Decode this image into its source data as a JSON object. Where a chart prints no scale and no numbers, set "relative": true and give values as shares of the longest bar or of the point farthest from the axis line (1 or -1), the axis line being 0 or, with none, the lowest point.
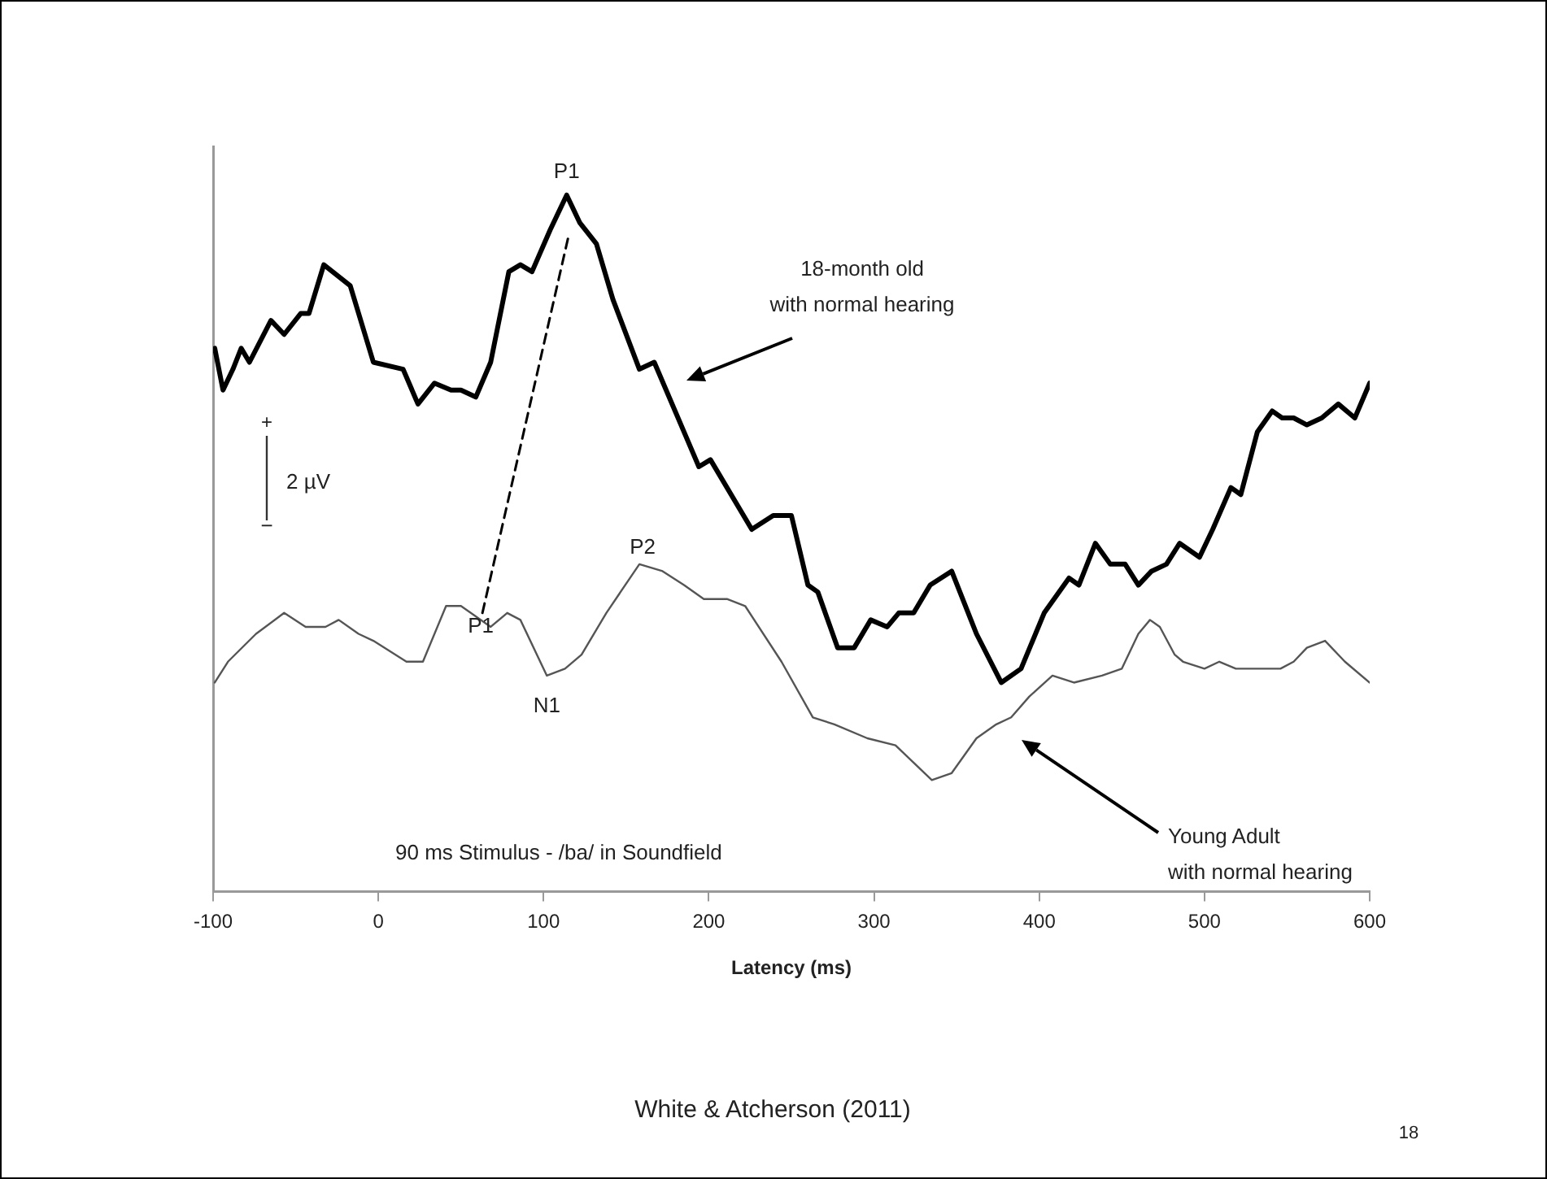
{
  "chart_data": {
    "type": "line",
    "relative": true,
    "xlabel": "Latency (ms)",
    "xlim": [
      -100,
      600
    ],
    "xticks": [
      -100,
      0,
      100,
      200,
      300,
      400,
      500,
      600
    ],
    "grid": false,
    "legend": false,
    "marker": "none",
    "line_style": "solid",
    "series": [
      {
        "color": "#000000",
        "x": [
          -99,
          -94,
          -88,
          -83,
          -78,
          -65,
          -57,
          -47,
          -42,
          -33,
          -17,
          -3,
          15,
          24,
          34,
          44,
          50,
          59,
          68,
          79,
          86,
          93,
          104,
          114,
          122,
          132,
          142,
          158,
          167,
          185,
          194,
          201,
          226,
          239,
          250,
          260,
          266,
          278,
          288,
          298,
          308,
          315,
          324,
          334,
          347,
          362,
          377,
          389,
          403,
          418,
          424,
          434,
          443,
          452,
          460,
          468,
          477,
          485,
          497,
          505,
          516,
          522,
          532,
          541,
          547,
          554,
          562,
          571,
          581,
          591,
          600
        ],
        "values": [
          0.78,
          0.72,
          0.75,
          0.78,
          0.76,
          0.82,
          0.8,
          0.83,
          0.83,
          0.9,
          0.87,
          0.76,
          0.75,
          0.7,
          0.73,
          0.72,
          0.72,
          0.71,
          0.76,
          0.89,
          0.9,
          0.89,
          0.95,
          1,
          0.96,
          0.93,
          0.85,
          0.75,
          0.76,
          0.66,
          0.61,
          0.62,
          0.52,
          0.54,
          0.54,
          0.44,
          0.43,
          0.35,
          0.35,
          0.39,
          0.38,
          0.4,
          0.4,
          0.44,
          0.46,
          0.37,
          0.3,
          0.32,
          0.4,
          0.45,
          0.44,
          0.5,
          0.47,
          0.47,
          0.44,
          0.46,
          0.47,
          0.5,
          0.48,
          0.52,
          0.58,
          0.57,
          0.66,
          0.69,
          0.68,
          0.68,
          0.67,
          0.68,
          0.7,
          0.68,
          0.73
        ]
      },
      {
        "color": "#555555",
        "x": [
          -99,
          -91,
          -74,
          -57,
          -44,
          -32,
          -24,
          -12,
          -3,
          17,
          27,
          41,
          50,
          68,
          78,
          86,
          102,
          113,
          123,
          138,
          158,
          172,
          185,
          197,
          211,
          222,
          244,
          263,
          276,
          296,
          313,
          335,
          347,
          362,
          374,
          383,
          394,
          408,
          421,
          438,
          450,
          460,
          467,
          473,
          482,
          487,
          500,
          509,
          519,
          529,
          536,
          546,
          554,
          562,
          573,
          585,
          600
        ],
        "values": [
          0.3,
          0.33,
          0.37,
          0.4,
          0.38,
          0.38,
          0.39,
          0.37,
          0.36,
          0.33,
          0.33,
          0.41,
          0.41,
          0.38,
          0.4,
          0.39,
          0.31,
          0.32,
          0.34,
          0.4,
          0.47,
          0.46,
          0.44,
          0.42,
          0.42,
          0.41,
          0.33,
          0.25,
          0.24,
          0.22,
          0.21,
          0.16,
          0.17,
          0.22,
          0.24,
          0.25,
          0.28,
          0.31,
          0.3,
          0.31,
          0.32,
          0.37,
          0.39,
          0.38,
          0.34,
          0.33,
          0.32,
          0.33,
          0.32,
          0.32,
          0.32,
          0.32,
          0.33,
          0.35,
          0.36,
          0.33,
          0.3
        ]
      },
      {
        "color": "#000000",
        "line_style": "dashed",
        "x": [
          63,
          115
        ],
        "values": [
          0.4,
          0.94
        ]
      }
    ],
    "annotations": [
      {
        "text": "P1",
        "x": 114,
        "y": 1
      },
      {
        "text": "P1",
        "x": 62,
        "y": 0.38
      },
      {
        "text": "N1",
        "x": 102,
        "y": 0.31
      },
      {
        "text": "P2",
        "x": 160,
        "y": 0.47
      },
      "18-month old\nwith normal hearing",
      "Young Adult\nwith normal hearing",
      "90 ms Stimulus - /ba/ in Soundfield",
      "+",
      "2 µV",
      "−",
      "White & Atcherson (2011)",
      "18"
    ]
  }
}
